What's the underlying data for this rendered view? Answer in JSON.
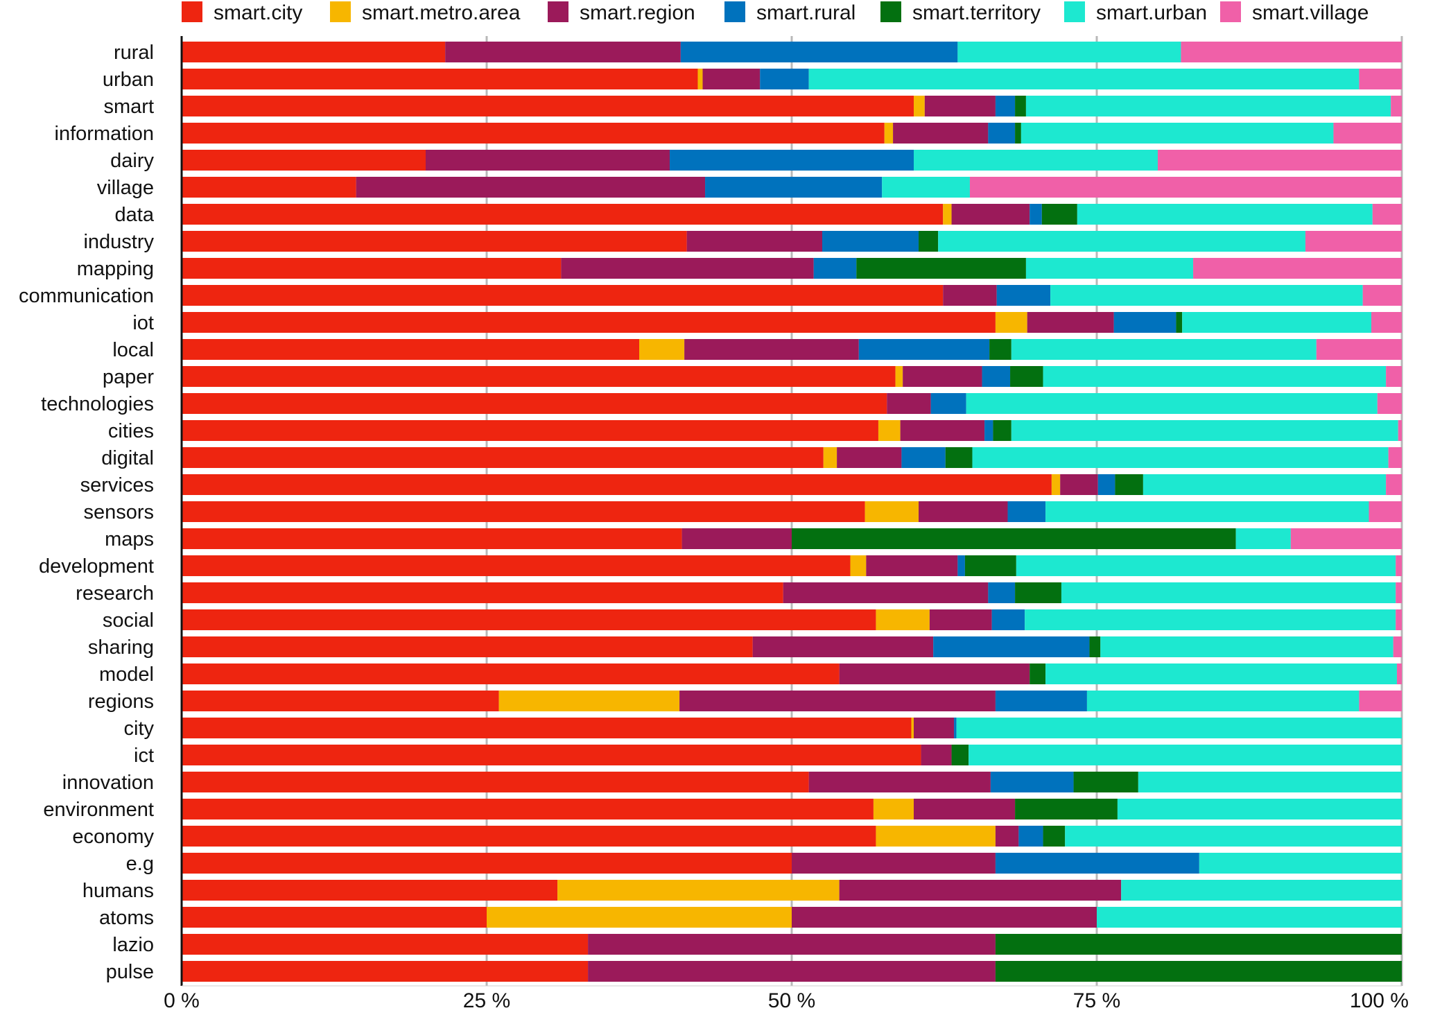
{
  "chart_data": {
    "type": "bar",
    "orientation": "horizontal",
    "stacked": true,
    "normalized": true,
    "legend_position": "top",
    "grid": true,
    "xlim": [
      0,
      100
    ],
    "x_ticks": [
      {
        "value": 0,
        "label": "0 %"
      },
      {
        "value": 25,
        "label": "25 %"
      },
      {
        "value": 50,
        "label": "50 %"
      },
      {
        "value": 75,
        "label": "75 %"
      },
      {
        "value": 100,
        "label": "100 %"
      }
    ],
    "categories": [
      "rural",
      "urban",
      "smart",
      "information",
      "dairy",
      "village",
      "data",
      "industry",
      "mapping",
      "communication",
      "iot",
      "local",
      "paper",
      "technologies",
      "cities",
      "digital",
      "services",
      "sensors",
      "maps",
      "development",
      "research",
      "social",
      "sharing",
      "model",
      "regions",
      "city",
      "ict",
      "innovation",
      "environment",
      "economy",
      "e.g",
      "humans",
      "atoms",
      "lazio",
      "pulse"
    ],
    "series": [
      {
        "name": "smart.city",
        "color": "#ee2510",
        "values": [
          21.6,
          42.3,
          60.0,
          57.6,
          20.0,
          14.3,
          62.4,
          41.4,
          31.1,
          62.4,
          66.7,
          37.5,
          58.5,
          57.8,
          57.1,
          52.6,
          71.3,
          56.0,
          41.0,
          54.8,
          49.3,
          56.9,
          46.8,
          53.9,
          26.0,
          59.8,
          60.6,
          51.4,
          56.7,
          56.9,
          50.0,
          30.8,
          25.0,
          33.3,
          33.3
        ]
      },
      {
        "name": "smart.metro.area",
        "color": "#f7b600",
        "values": [
          0,
          0.4,
          0.9,
          0.7,
          0,
          0,
          0.7,
          0,
          0,
          0,
          2.6,
          3.7,
          0.6,
          0,
          1.8,
          1.1,
          0.7,
          4.4,
          0,
          1.3,
          0,
          4.4,
          0,
          0,
          14.8,
          0.2,
          0,
          0,
          3.3,
          9.8,
          0,
          23.1,
          25.0,
          0,
          0
        ]
      },
      {
        "name": "smart.region",
        "color": "#9b1a5a",
        "values": [
          19.3,
          4.7,
          5.8,
          7.8,
          20.0,
          28.6,
          6.4,
          11.1,
          20.7,
          4.4,
          7.1,
          14.3,
          6.5,
          3.6,
          6.9,
          5.3,
          3.1,
          7.3,
          9.0,
          7.5,
          16.8,
          5.1,
          14.8,
          15.6,
          25.9,
          3.3,
          2.5,
          14.9,
          8.3,
          1.9,
          16.7,
          23.1,
          25.0,
          33.4,
          33.4
        ]
      },
      {
        "name": "smart.rural",
        "color": "#0072bd",
        "values": [
          22.7,
          4.0,
          1.6,
          2.2,
          20.0,
          14.5,
          1.0,
          7.9,
          3.5,
          4.4,
          5.1,
          10.7,
          2.3,
          2.9,
          0.7,
          3.6,
          1.4,
          3.1,
          0,
          0.6,
          2.2,
          2.7,
          12.8,
          0,
          7.5,
          0.2,
          0,
          6.8,
          0,
          2.0,
          16.7,
          0,
          0,
          0,
          0
        ]
      },
      {
        "name": "smart.territory",
        "color": "#037010",
        "values": [
          0,
          0,
          0.9,
          0.5,
          0,
          0,
          2.9,
          1.6,
          13.9,
          0,
          0.5,
          1.8,
          2.7,
          0,
          1.5,
          2.2,
          2.3,
          0,
          36.4,
          4.2,
          3.8,
          0,
          0.9,
          1.3,
          0,
          0,
          1.4,
          5.3,
          8.4,
          1.8,
          0,
          0,
          0,
          33.3,
          33.3
        ]
      },
      {
        "name": "smart.urban",
        "color": "#1de8d0",
        "values": [
          18.3,
          45.1,
          29.9,
          25.6,
          20.0,
          7.2,
          24.2,
          30.1,
          13.7,
          25.6,
          15.5,
          25.0,
          28.1,
          33.7,
          31.7,
          34.1,
          19.9,
          26.5,
          4.5,
          31.1,
          27.4,
          30.4,
          24.0,
          28.8,
          22.3,
          36.5,
          35.5,
          21.6,
          23.3,
          27.6,
          16.6,
          23.0,
          25.0,
          0,
          0
        ]
      },
      {
        "name": "smart.village",
        "color": "#f060a8",
        "values": [
          18.1,
          3.5,
          0.9,
          5.6,
          20.0,
          35.4,
          2.4,
          7.9,
          17.1,
          3.2,
          2.5,
          7.0,
          1.3,
          2.0,
          0.3,
          1.1,
          1.3,
          2.7,
          9.1,
          0.5,
          0.5,
          0.5,
          0.7,
          0.4,
          3.5,
          0,
          0,
          0,
          0,
          0,
          0,
          0,
          0,
          0,
          0
        ]
      }
    ]
  }
}
